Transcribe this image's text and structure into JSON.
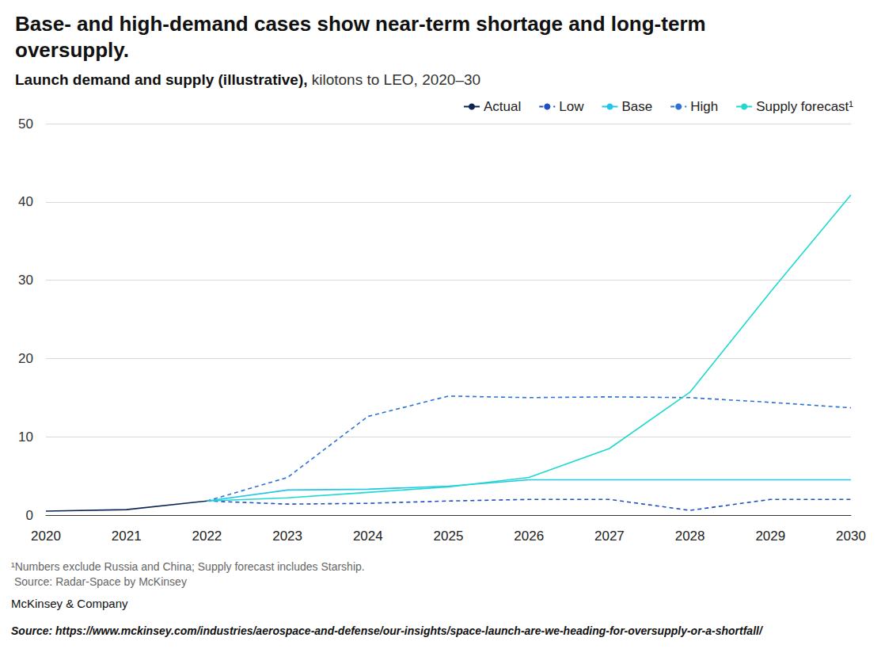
{
  "chart_data": {
    "type": "line",
    "title": "Base- and high-demand cases show near-term shortage and long-term oversupply.",
    "subtitle": "Launch demand and supply (illustrative), kilotons to LEO, 2020–30",
    "categories": [
      "2020",
      "2021",
      "2022",
      "2023",
      "2024",
      "2025",
      "2026",
      "2027",
      "2028",
      "2029",
      "2030"
    ],
    "series": [
      {
        "name": "Actual",
        "color": "#0b2456",
        "line_style": "solid",
        "values": [
          0.5,
          0.7,
          1.8,
          null,
          null,
          null,
          null,
          null,
          null,
          null,
          null
        ]
      },
      {
        "name": "Low",
        "color": "#1f4fc0",
        "line_style": "dashed",
        "values": [
          null,
          null,
          1.8,
          1.4,
          1.5,
          1.8,
          2.0,
          2.0,
          0.6,
          2.0,
          2.0
        ]
      },
      {
        "name": "Base",
        "color": "#22c6e8",
        "line_style": "solid",
        "values": [
          null,
          null,
          1.8,
          3.2,
          3.3,
          3.7,
          4.5,
          4.5,
          4.5,
          4.5,
          4.5
        ]
      },
      {
        "name": "High",
        "color": "#2a72d6",
        "line_style": "dashed",
        "values": [
          null,
          null,
          1.8,
          4.8,
          12.6,
          15.2,
          15.0,
          15.1,
          15.0,
          14.4,
          13.7
        ]
      },
      {
        "name": "Supply forecast¹",
        "color": "#1fd9cf",
        "line_style": "solid",
        "values": [
          null,
          null,
          1.8,
          2.2,
          2.9,
          3.6,
          4.8,
          8.5,
          15.7,
          28.5,
          40.9
        ]
      }
    ],
    "ylim": [
      0,
      50
    ],
    "yticks": [
      0,
      10,
      20,
      30,
      40,
      50
    ],
    "grid": true,
    "legend": "top-right",
    "notes": [
      "¹Numbers exclude Russia and China; Supply forecast includes Starship.",
      "Source: Radar-Space by McKinsey"
    ],
    "brand": "McKinsey & Company",
    "source": "Source: https://www.mckinsey.com/industries/aerospace-and-defense/our-insights/space-launch-are-we-heading-for-oversupply-or-a-shortfall/"
  }
}
